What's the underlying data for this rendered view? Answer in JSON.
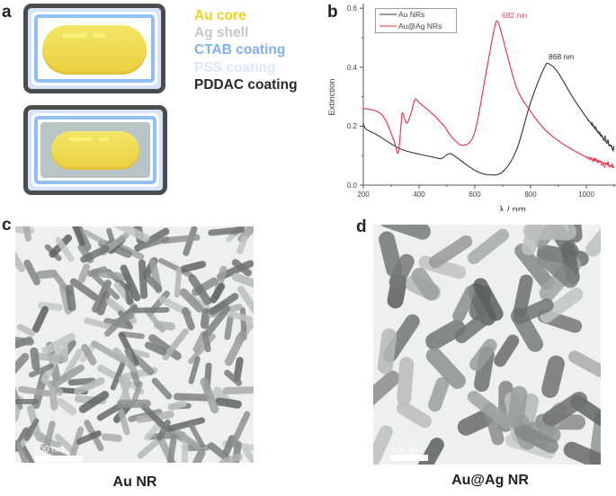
{
  "panels": {
    "a": {
      "letter": "a",
      "legend": [
        {
          "label": "Au core",
          "color": "#f5cf1d"
        },
        {
          "label": "Ag shell",
          "color": "#c3c9c9"
        },
        {
          "label": "CTAB coating",
          "color": "#7fb1f3"
        },
        {
          "label": "PSS coating",
          "color": "#dbe7fb"
        },
        {
          "label": "PDDAC coating",
          "color": "#2a2a2a"
        }
      ],
      "colors": {
        "pddac": "#4a4d4e",
        "pss": "#d6e4fb",
        "ctab": "#8fc0f7",
        "ag": "#b9c4c6",
        "au": "#f1dc5a",
        "au_edge": "#e2c43c"
      }
    },
    "b": {
      "letter": "b",
      "annotations": [
        {
          "text": "682 nm",
          "color": "#f0426a"
        },
        {
          "text": "868 nm",
          "color": "#333333"
        }
      ]
    },
    "c": {
      "letter": "c",
      "caption": "Au NR",
      "scalebar": "100 nm"
    },
    "d": {
      "letter": "d",
      "caption": "Au@Ag NR",
      "scalebar": "100 nm"
    }
  },
  "chart_data": {
    "type": "line",
    "title": "",
    "xlabel": "λ / nm",
    "ylabel": "Extinction",
    "xlim": [
      200,
      1100
    ],
    "ylim": [
      0.0,
      0.6
    ],
    "xticks": [
      200,
      400,
      600,
      800,
      1000
    ],
    "yticks": [
      0.0,
      0.2,
      0.4,
      0.6
    ],
    "ytick_labels": [
      "0.0",
      "0.2",
      "0.4",
      "0.6"
    ],
    "grid": false,
    "legend_position": "upper left",
    "series": [
      {
        "name": "Au NRs",
        "color": "#333333",
        "x": [
          200,
          210,
          250,
          300,
          340,
          400,
          450,
          480,
          510,
          540,
          600,
          650,
          700,
          750,
          800,
          850,
          868,
          900,
          950,
          1000,
          1050,
          1100
        ],
        "y": [
          0.21,
          0.19,
          0.17,
          0.14,
          0.12,
          0.105,
          0.095,
          0.09,
          0.107,
          0.09,
          0.05,
          0.035,
          0.045,
          0.12,
          0.28,
          0.4,
          0.41,
          0.38,
          0.3,
          0.23,
          0.17,
          0.12
        ]
      },
      {
        "name": "Au@Ag NRs",
        "color": "#ee2b3b",
        "x": [
          200,
          250,
          280,
          310,
          325,
          335,
          340,
          355,
          370,
          385,
          400,
          450,
          490,
          520,
          560,
          600,
          640,
          670,
          682,
          700,
          750,
          800,
          850,
          900,
          950,
          1000,
          1050,
          1100
        ],
        "y": [
          0.26,
          0.25,
          0.22,
          0.15,
          0.11,
          0.2,
          0.245,
          0.21,
          0.24,
          0.29,
          0.28,
          0.24,
          0.2,
          0.16,
          0.135,
          0.18,
          0.38,
          0.53,
          0.555,
          0.5,
          0.33,
          0.25,
          0.19,
          0.15,
          0.12,
          0.095,
          0.08,
          0.06
        ]
      }
    ],
    "annotations": [
      {
        "text": "682 nm",
        "x": 682,
        "y": 0.555
      },
      {
        "text": "868 nm",
        "x": 868,
        "y": 0.41
      }
    ]
  }
}
